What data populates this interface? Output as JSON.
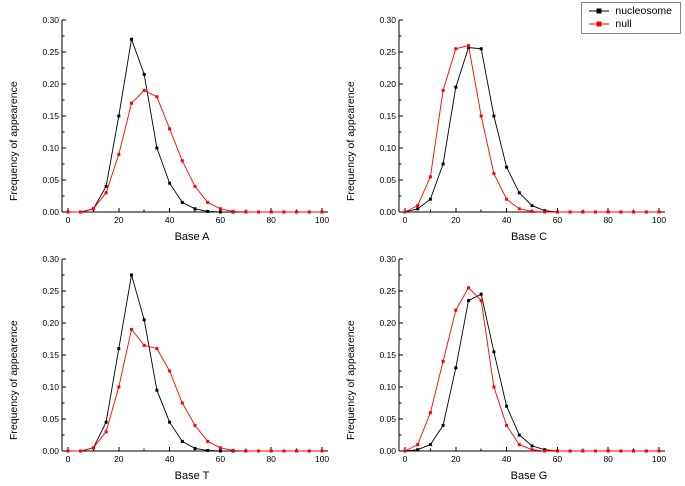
{
  "legend": {
    "note": "series legend shown top-right"
  },
  "chart_data": [
    {
      "type": "line",
      "title": "",
      "xlabel": "Base A",
      "ylabel": "Frequency of appearence",
      "x": [
        0,
        5,
        10,
        15,
        20,
        25,
        30,
        35,
        40,
        45,
        50,
        55,
        60,
        65,
        70,
        75,
        80,
        85,
        90,
        95,
        100
      ],
      "xticks": [
        0,
        20,
        40,
        60,
        80,
        100
      ],
      "yticks": [
        "0.00",
        "0.05",
        "0.10",
        "0.15",
        "0.20",
        "0.25",
        "0.30"
      ],
      "xlim": [
        0,
        100
      ],
      "ylim": [
        0,
        0.3
      ],
      "grid": false,
      "legend_position": "top-right-figure",
      "series": [
        {
          "name": "nucleosome",
          "color": "#000000",
          "values": [
            0.0,
            0.0,
            0.005,
            0.04,
            0.15,
            0.27,
            0.215,
            0.1,
            0.045,
            0.015,
            0.005,
            0.001,
            0.0,
            0.0,
            0.0,
            0.0,
            0.0,
            0.0,
            0.0,
            0.0,
            0.0
          ]
        },
        {
          "name": "null",
          "color": "#ff0000",
          "values": [
            0.0,
            0.0,
            0.005,
            0.03,
            0.09,
            0.17,
            0.19,
            0.18,
            0.13,
            0.08,
            0.04,
            0.015,
            0.005,
            0.001,
            0.0,
            0.0,
            0.0,
            0.0,
            0.0,
            0.0,
            0.0
          ]
        }
      ]
    },
    {
      "type": "line",
      "title": "",
      "xlabel": "Base C",
      "ylabel": "Frequency of appearence",
      "x": [
        0,
        5,
        10,
        15,
        20,
        25,
        30,
        35,
        40,
        45,
        50,
        55,
        60,
        65,
        70,
        75,
        80,
        85,
        90,
        95,
        100
      ],
      "xticks": [
        0,
        20,
        40,
        60,
        80,
        100
      ],
      "yticks": [
        "0.00",
        "0.05",
        "0.10",
        "0.15",
        "0.20",
        "0.25",
        "0.30"
      ],
      "xlim": [
        0,
        100
      ],
      "ylim": [
        0,
        0.3
      ],
      "grid": false,
      "series": [
        {
          "name": "nucleosome",
          "color": "#000000",
          "values": [
            0.0,
            0.005,
            0.02,
            0.075,
            0.195,
            0.257,
            0.255,
            0.15,
            0.07,
            0.03,
            0.01,
            0.002,
            0.0,
            0.0,
            0.0,
            0.0,
            0.0,
            0.0,
            0.0,
            0.0,
            0.0
          ]
        },
        {
          "name": "null",
          "color": "#ff0000",
          "values": [
            0.0,
            0.01,
            0.055,
            0.19,
            0.255,
            0.26,
            0.15,
            0.06,
            0.02,
            0.005,
            0.001,
            0.0,
            0.0,
            0.0,
            0.0,
            0.0,
            0.0,
            0.0,
            0.0,
            0.0,
            0.0
          ]
        }
      ]
    },
    {
      "type": "line",
      "title": "",
      "xlabel": "Base T",
      "ylabel": "Frequency of appearence",
      "x": [
        0,
        5,
        10,
        15,
        20,
        25,
        30,
        35,
        40,
        45,
        50,
        55,
        60,
        65,
        70,
        75,
        80,
        85,
        90,
        95,
        100
      ],
      "xticks": [
        0,
        20,
        40,
        60,
        80,
        100
      ],
      "yticks": [
        "0.00",
        "0.05",
        "0.10",
        "0.15",
        "0.20",
        "0.25",
        "0.30"
      ],
      "xlim": [
        0,
        100
      ],
      "ylim": [
        0,
        0.3
      ],
      "grid": false,
      "series": [
        {
          "name": "nucleosome",
          "color": "#000000",
          "values": [
            0.0,
            0.0,
            0.005,
            0.045,
            0.16,
            0.275,
            0.205,
            0.095,
            0.045,
            0.015,
            0.004,
            0.001,
            0.0,
            0.0,
            0.0,
            0.0,
            0.0,
            0.0,
            0.0,
            0.0,
            0.0
          ]
        },
        {
          "name": "null",
          "color": "#ff0000",
          "values": [
            0.0,
            0.0,
            0.005,
            0.03,
            0.1,
            0.19,
            0.165,
            0.16,
            0.125,
            0.075,
            0.04,
            0.015,
            0.005,
            0.001,
            0.0,
            0.0,
            0.0,
            0.0,
            0.0,
            0.0,
            0.0
          ]
        }
      ]
    },
    {
      "type": "line",
      "title": "",
      "xlabel": "Base G",
      "ylabel": "Frequency of appearence",
      "x": [
        0,
        5,
        10,
        15,
        20,
        25,
        30,
        35,
        40,
        45,
        50,
        55,
        60,
        65,
        70,
        75,
        80,
        85,
        90,
        95,
        100
      ],
      "xticks": [
        0,
        20,
        40,
        60,
        80,
        100
      ],
      "yticks": [
        "0.00",
        "0.05",
        "0.10",
        "0.15",
        "0.20",
        "0.25",
        "0.30"
      ],
      "xlim": [
        0,
        100
      ],
      "ylim": [
        0,
        0.3
      ],
      "grid": false,
      "series": [
        {
          "name": "nucleosome",
          "color": "#000000",
          "values": [
            0.0,
            0.002,
            0.01,
            0.04,
            0.13,
            0.235,
            0.245,
            0.155,
            0.07,
            0.025,
            0.008,
            0.002,
            0.0,
            0.0,
            0.0,
            0.0,
            0.0,
            0.0,
            0.0,
            0.0,
            0.0
          ]
        },
        {
          "name": "null",
          "color": "#ff0000",
          "values": [
            0.0,
            0.01,
            0.06,
            0.14,
            0.22,
            0.255,
            0.235,
            0.1,
            0.04,
            0.01,
            0.002,
            0.0,
            0.0,
            0.0,
            0.0,
            0.0,
            0.0,
            0.0,
            0.0,
            0.0,
            0.0
          ]
        }
      ]
    }
  ]
}
